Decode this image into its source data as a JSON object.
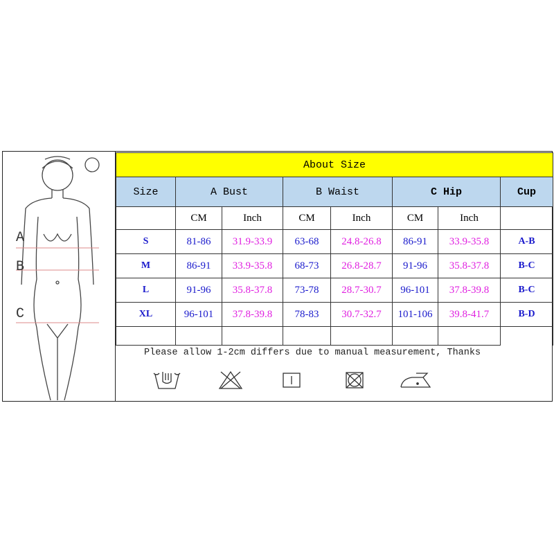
{
  "figure": {
    "labels": [
      "A",
      "B",
      "C"
    ]
  },
  "title": "About Size",
  "headers": [
    "Size",
    "A Bust",
    "B Waist",
    "C Hip",
    "Cup"
  ],
  "units": [
    "CM",
    "Inch",
    "CM",
    "Inch",
    "CM",
    "Inch"
  ],
  "rows": [
    {
      "size": "S",
      "bust_cm": "81-86",
      "bust_in": "31.9-33.9",
      "waist_cm": "63-68",
      "waist_in": "24.8-26.8",
      "hip_cm": "86-91",
      "hip_in": "33.9-35.8",
      "cup": "A-B"
    },
    {
      "size": "M",
      "bust_cm": "86-91",
      "bust_in": "33.9-35.8",
      "waist_cm": "68-73",
      "waist_in": "26.8-28.7",
      "hip_cm": "91-96",
      "hip_in": "35.8-37.8",
      "cup": "B-C"
    },
    {
      "size": "L",
      "bust_cm": "91-96",
      "bust_in": "35.8-37.8",
      "waist_cm": "73-78",
      "waist_in": "28.7-30.7",
      "hip_cm": "96-101",
      "hip_in": "37.8-39.8",
      "cup": "B-C"
    },
    {
      "size": "XL",
      "bust_cm": "96-101",
      "bust_in": "37.8-39.8",
      "waist_cm": "78-83",
      "waist_in": "30.7-32.7",
      "hip_cm": "101-106",
      "hip_in": "39.8-41.7",
      "cup": "B-D"
    }
  ],
  "note": "Please allow 1-2cm differs due to manual measurement, Thanks",
  "care_icons": [
    "hand-wash-icon",
    "do-not-bleach-icon",
    "line-dry-icon",
    "do-not-tumble-dry-icon",
    "iron-low-icon"
  ],
  "colors": {
    "title_bg": "#ffff00",
    "header_bg": "#bdd7ee",
    "cm": "#1a1acc",
    "inch": "#e020e0"
  }
}
